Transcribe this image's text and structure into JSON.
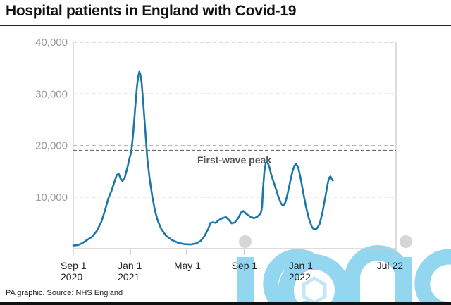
{
  "header": {
    "title": "Hospital patients in England with Covid-19"
  },
  "footer": {
    "source": "PA graphic. Source: NHS England"
  },
  "watermark": {
    "text": "iconic"
  },
  "colors": {
    "line": "#1a77a8",
    "grid": "#b5b5b5",
    "reference": "#6e6e6e",
    "watermark": "#7fd0ee"
  },
  "chart_data": {
    "type": "line",
    "title": "Hospital patients in England with Covid-19",
    "xlabel": "",
    "ylabel": "",
    "ylim": [
      0,
      40000
    ],
    "xlim_days": [
      0,
      689
    ],
    "x_unit": "days since Sep 1 2020",
    "yticks": [
      {
        "value": 40000,
        "label": "40,000"
      },
      {
        "value": 30000,
        "label": "30,000"
      },
      {
        "value": 20000,
        "label": "20,000"
      },
      {
        "value": 10000,
        "label": "10,000"
      }
    ],
    "xticks": [
      {
        "day": 0,
        "line1": "Sep 1",
        "line2": "2020"
      },
      {
        "day": 122,
        "line1": "Jan 1",
        "line2": "2021"
      },
      {
        "day": 242,
        "line1": "May 1",
        "line2": ""
      },
      {
        "day": 365,
        "line1": "Sep 1",
        "line2": ""
      },
      {
        "day": 487,
        "line1": "Jan 1",
        "line2": "2022"
      },
      {
        "day": 689,
        "line1": "Jul 22",
        "line2": ""
      }
    ],
    "grid": true,
    "reference_line": {
      "value": 19000,
      "label": "First-wave peak"
    },
    "series": [
      {
        "name": "Hospital patients",
        "points": [
          [
            0,
            600
          ],
          [
            10,
            700
          ],
          [
            20,
            1100
          ],
          [
            30,
            1700
          ],
          [
            40,
            2300
          ],
          [
            50,
            3400
          ],
          [
            60,
            5200
          ],
          [
            68,
            7500
          ],
          [
            75,
            9800
          ],
          [
            82,
            11300
          ],
          [
            88,
            13000
          ],
          [
            93,
            14300
          ],
          [
            97,
            14500
          ],
          [
            101,
            13600
          ],
          [
            105,
            13100
          ],
          [
            110,
            13800
          ],
          [
            115,
            15500
          ],
          [
            120,
            17500
          ],
          [
            124,
            18800
          ],
          [
            128,
            22500
          ],
          [
            132,
            27000
          ],
          [
            136,
            31500
          ],
          [
            139,
            33500
          ],
          [
            141,
            34300
          ],
          [
            143,
            33800
          ],
          [
            146,
            32000
          ],
          [
            150,
            27500
          ],
          [
            154,
            22500
          ],
          [
            158,
            17500
          ],
          [
            163,
            13500
          ],
          [
            168,
            10500
          ],
          [
            174,
            7500
          ],
          [
            180,
            5500
          ],
          [
            188,
            3800
          ],
          [
            198,
            2500
          ],
          [
            210,
            1700
          ],
          [
            222,
            1200
          ],
          [
            235,
            900
          ],
          [
            250,
            800
          ],
          [
            262,
            1000
          ],
          [
            272,
            1500
          ],
          [
            280,
            2400
          ],
          [
            288,
            3800
          ],
          [
            293,
            5000
          ],
          [
            298,
            5100
          ],
          [
            304,
            5000
          ],
          [
            310,
            5500
          ],
          [
            318,
            5900
          ],
          [
            326,
            6100
          ],
          [
            333,
            5500
          ],
          [
            338,
            4900
          ],
          [
            345,
            5100
          ],
          [
            352,
            5900
          ],
          [
            358,
            7000
          ],
          [
            363,
            7300
          ],
          [
            370,
            6700
          ],
          [
            378,
            6200
          ],
          [
            386,
            5900
          ],
          [
            393,
            6200
          ],
          [
            400,
            6800
          ],
          [
            403,
            8000
          ],
          [
            405,
            11500
          ],
          [
            408,
            15000
          ],
          [
            411,
            16600
          ],
          [
            414,
            16800
          ],
          [
            418,
            16000
          ],
          [
            423,
            14200
          ],
          [
            430,
            12300
          ],
          [
            437,
            10300
          ],
          [
            443,
            8800
          ],
          [
            448,
            8300
          ],
          [
            453,
            9000
          ],
          [
            458,
            10800
          ],
          [
            463,
            13000
          ],
          [
            468,
            15000
          ],
          [
            472,
            16100
          ],
          [
            476,
            16400
          ],
          [
            480,
            15800
          ],
          [
            485,
            13800
          ],
          [
            491,
            10800
          ],
          [
            497,
            8000
          ],
          [
            503,
            5800
          ],
          [
            509,
            4300
          ],
          [
            514,
            3700
          ],
          [
            520,
            3900
          ],
          [
            526,
            4800
          ],
          [
            532,
            7000
          ],
          [
            538,
            10000
          ],
          [
            543,
            12500
          ],
          [
            546,
            13700
          ],
          [
            549,
            14000
          ],
          [
            552,
            13500
          ],
          [
            554,
            13200
          ]
        ]
      }
    ]
  }
}
